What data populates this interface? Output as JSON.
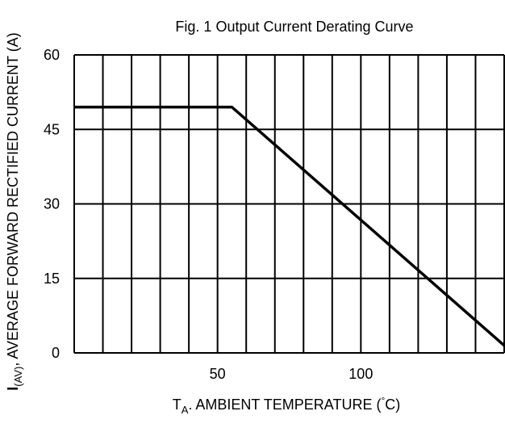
{
  "chart_data": {
    "type": "line",
    "title": "Fig. 1  Output Current Derating Curve",
    "xlabel": {
      "main": "T",
      "subscript": "A",
      "rest": ". AMBIENT TEMPERATURE (",
      "degree": "°",
      "unit": "C)"
    },
    "ylabel": {
      "main": "I",
      "subscript": "(AV)",
      "rest": ", AVERAGE FORWARD RECTIFIED CURRENT (A)"
    },
    "xlim": [
      0,
      150
    ],
    "ylim": [
      0,
      60
    ],
    "x_ticks": [
      50,
      100
    ],
    "y_ticks": [
      0,
      15,
      30,
      45,
      60
    ],
    "x_gridlines": [
      0,
      10,
      20,
      30,
      40,
      50,
      60,
      70,
      80,
      90,
      100,
      110,
      120,
      130,
      140,
      150
    ],
    "y_gridlines": [
      0,
      15,
      30,
      45,
      60
    ],
    "grid": true,
    "series": [
      {
        "x": [
          0,
          55,
          150
        ],
        "y": [
          49.5,
          49.5,
          1.5
        ]
      }
    ]
  }
}
